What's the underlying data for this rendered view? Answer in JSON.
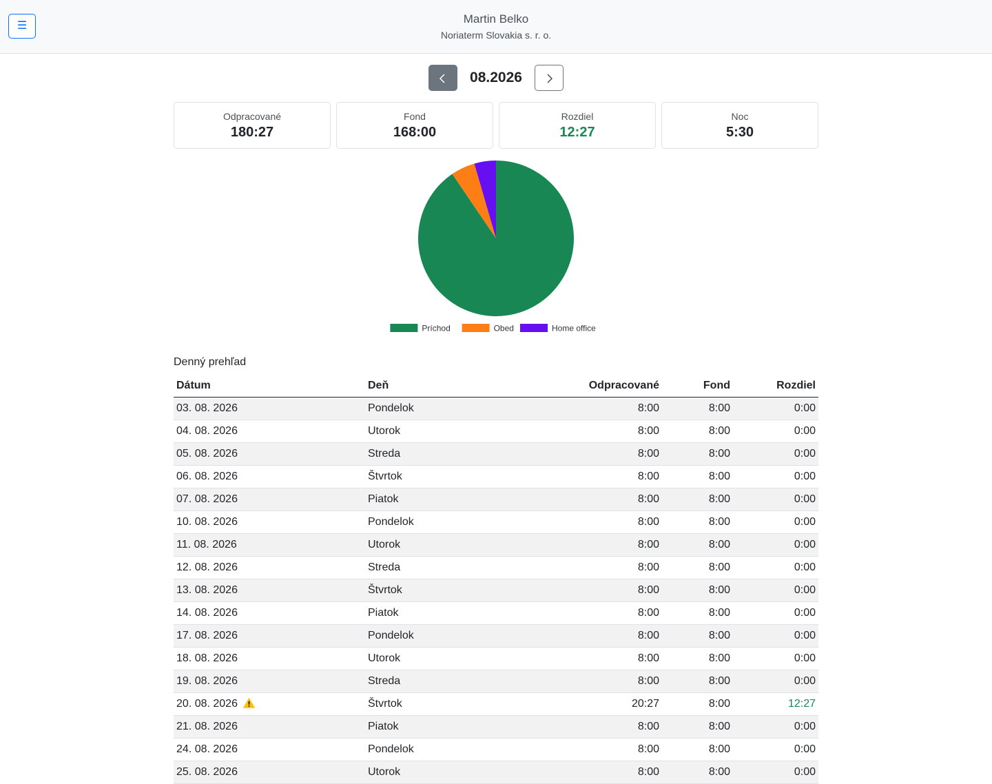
{
  "header": {
    "menu_icon": "☰",
    "user_name": "Martin Belko",
    "company": "Noriaterm Slovakia s. r. o."
  },
  "month_nav": {
    "prev_icon": "chevron-left-icon",
    "next_icon": "chevron-right-icon",
    "label": "08.2026"
  },
  "summary": {
    "worked": {
      "label": "Odpracované",
      "value": "180:27"
    },
    "fond": {
      "label": "Fond",
      "value": "168:00"
    },
    "diff": {
      "label": "Rozdiel",
      "value": "12:27"
    },
    "night": {
      "label": "Noc",
      "value": "5:30"
    }
  },
  "chart_data": {
    "type": "pie",
    "labels": [
      "Príchod",
      "Obed",
      "Home office"
    ],
    "values": [
      90.5,
      5.0,
      4.5
    ],
    "colors": [
      "#198754",
      "#fd7e14",
      "#6610f2"
    ],
    "legend_position": "bottom"
  },
  "daily": {
    "title": "Denný prehľad",
    "headers": {
      "date": "Dátum",
      "day": "Deň",
      "worked": "Odpracované",
      "fond": "Fond",
      "diff": "Rozdiel"
    },
    "rows": [
      {
        "date": "03. 08. 2026",
        "day": "Pondelok",
        "worked": "8:00",
        "fond": "8:00",
        "diff": "0:00",
        "warning": false
      },
      {
        "date": "04. 08. 2026",
        "day": "Utorok",
        "worked": "8:00",
        "fond": "8:00",
        "diff": "0:00",
        "warning": false
      },
      {
        "date": "05. 08. 2026",
        "day": "Streda",
        "worked": "8:00",
        "fond": "8:00",
        "diff": "0:00",
        "warning": false
      },
      {
        "date": "06. 08. 2026",
        "day": "Štvrtok",
        "worked": "8:00",
        "fond": "8:00",
        "diff": "0:00",
        "warning": false
      },
      {
        "date": "07. 08. 2026",
        "day": "Piatok",
        "worked": "8:00",
        "fond": "8:00",
        "diff": "0:00",
        "warning": false
      },
      {
        "date": "10. 08. 2026",
        "day": "Pondelok",
        "worked": "8:00",
        "fond": "8:00",
        "diff": "0:00",
        "warning": false
      },
      {
        "date": "11. 08. 2026",
        "day": "Utorok",
        "worked": "8:00",
        "fond": "8:00",
        "diff": "0:00",
        "warning": false
      },
      {
        "date": "12. 08. 2026",
        "day": "Streda",
        "worked": "8:00",
        "fond": "8:00",
        "diff": "0:00",
        "warning": false
      },
      {
        "date": "13. 08. 2026",
        "day": "Štvrtok",
        "worked": "8:00",
        "fond": "8:00",
        "diff": "0:00",
        "warning": false
      },
      {
        "date": "14. 08. 2026",
        "day": "Piatok",
        "worked": "8:00",
        "fond": "8:00",
        "diff": "0:00",
        "warning": false
      },
      {
        "date": "17. 08. 2026",
        "day": "Pondelok",
        "worked": "8:00",
        "fond": "8:00",
        "diff": "0:00",
        "warning": false
      },
      {
        "date": "18. 08. 2026",
        "day": "Utorok",
        "worked": "8:00",
        "fond": "8:00",
        "diff": "0:00",
        "warning": false
      },
      {
        "date": "19. 08. 2026",
        "day": "Streda",
        "worked": "8:00",
        "fond": "8:00",
        "diff": "0:00",
        "warning": false
      },
      {
        "date": "20. 08. 2026",
        "day": "Štvrtok",
        "worked": "20:27",
        "fond": "8:00",
        "diff": "12:27",
        "warning": true
      },
      {
        "date": "21. 08. 2026",
        "day": "Piatok",
        "worked": "8:00",
        "fond": "8:00",
        "diff": "0:00",
        "warning": false
      },
      {
        "date": "24. 08. 2026",
        "day": "Pondelok",
        "worked": "8:00",
        "fond": "8:00",
        "diff": "0:00",
        "warning": false
      },
      {
        "date": "25. 08. 2026",
        "day": "Utorok",
        "worked": "8:00",
        "fond": "8:00",
        "diff": "0:00",
        "warning": false
      }
    ]
  },
  "colors": {
    "accent": "#0d6efd",
    "positive": "#198754",
    "warning": "#ffc107"
  }
}
